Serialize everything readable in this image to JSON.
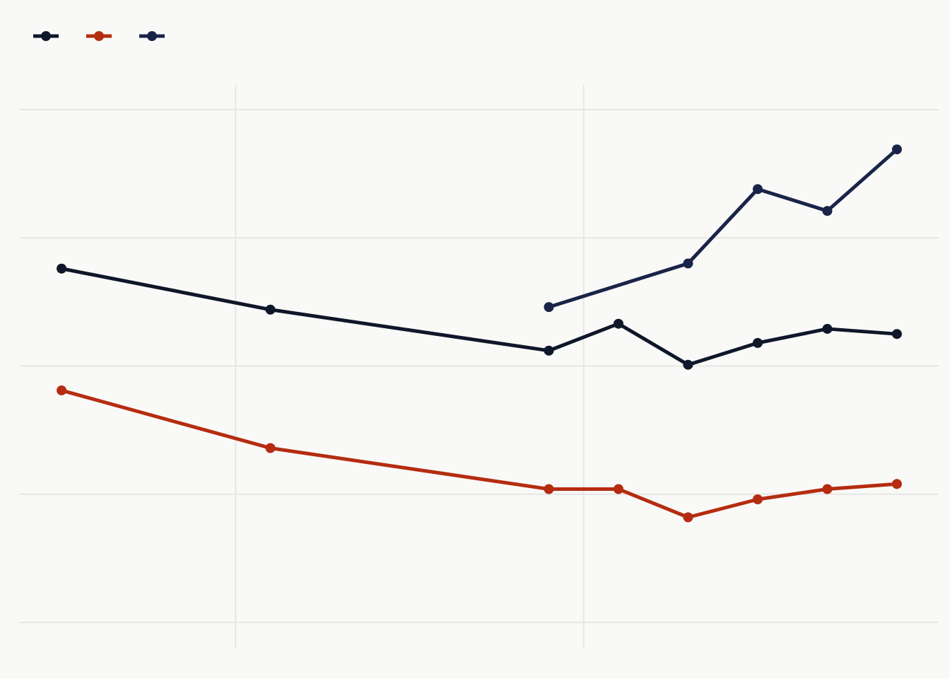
{
  "chart_data": {
    "type": "line",
    "title": "",
    "xlabel": "",
    "ylabel": "",
    "x": [
      2000,
      2003,
      2007,
      2008,
      2009,
      2010,
      2011,
      2012
    ],
    "xlim": [
      1999.4,
      2012.6
    ],
    "ylim": [
      0,
      4
    ],
    "grid": true,
    "legend": "top-left",
    "series": [
      {
        "color": "#0f172a",
        "values": [
          2.76,
          2.44,
          2.12,
          2.33,
          2.01,
          2.18,
          2.29,
          2.25
        ]
      },
      {
        "color": "#b52c10",
        "values": [
          1.81,
          1.36,
          1.04,
          1.04,
          0.82,
          0.96,
          1.04,
          1.08
        ]
      },
      {
        "color": "#1a2448",
        "values": [
          null,
          null,
          2.46,
          null,
          2.8,
          3.38,
          3.21,
          3.69
        ]
      }
    ]
  }
}
